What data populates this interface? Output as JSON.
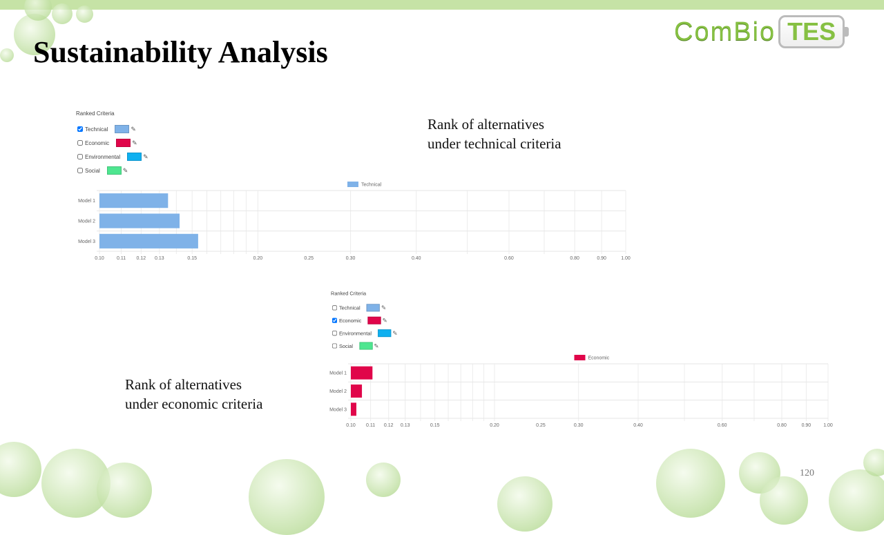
{
  "slide": {
    "title": "Sustainability Analysis",
    "page_number": "120"
  },
  "logo": {
    "part1": "ComBio",
    "part2": "TES"
  },
  "captions": {
    "technical": [
      "Rank of alternatives",
      "under technical criteria"
    ],
    "economic": [
      "Rank of alternatives",
      "under economic criteria"
    ]
  },
  "criteria_panel": {
    "heading": "Ranked Criteria",
    "items": [
      {
        "label": "Technical",
        "color": "#7fb2e8"
      },
      {
        "label": "Economic",
        "color": "#e0054a"
      },
      {
        "label": "Environmental",
        "color": "#0fb0f0"
      },
      {
        "label": "Social",
        "color": "#4ee690"
      }
    ],
    "edit_icon": "edit-icon"
  },
  "chart_data": [
    {
      "type": "bar",
      "orientation": "horizontal",
      "x_scale": "log",
      "checked": "Technical",
      "categories": [
        "Model 1",
        "Model 2",
        "Model 3"
      ],
      "series": [
        {
          "name": "Technical",
          "color": "#7fb2e8",
          "values": [
            0.135,
            0.142,
            0.154
          ]
        }
      ],
      "xlim": [
        0.1,
        1.0
      ],
      "xticks": [
        "0.10",
        "0.11",
        "0.12",
        "0.13",
        "0.15",
        "0.20",
        "0.25",
        "0.30",
        "0.40",
        "0.60",
        "0.80",
        "0.90",
        "1.00"
      ],
      "legend": "top-center",
      "grid": true
    },
    {
      "type": "bar",
      "orientation": "horizontal",
      "x_scale": "log",
      "checked": "Economic",
      "categories": [
        "Model 1",
        "Model 2",
        "Model 3"
      ],
      "series": [
        {
          "name": "Economic",
          "color": "#e0054a",
          "values": [
            0.111,
            0.1055,
            0.1027
          ]
        }
      ],
      "xlim": [
        0.1,
        1.0
      ],
      "xticks": [
        "0.10",
        "0.11",
        "0.12",
        "0.13",
        "0.15",
        "0.20",
        "0.25",
        "0.30",
        "0.40",
        "0.60",
        "0.80",
        "0.90",
        "1.00"
      ],
      "legend": "top-center",
      "grid": true
    }
  ]
}
